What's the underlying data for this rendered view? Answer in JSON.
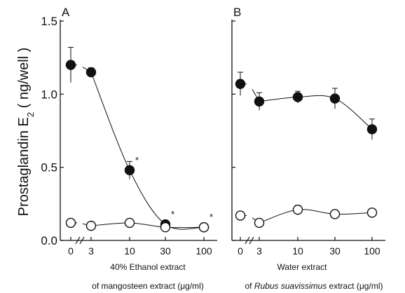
{
  "figure": {
    "ylabel": "Prostaglandin E",
    "ylabel_sub": "2",
    "ylabel_unit": " ( ng/well )"
  },
  "chart_data": [
    {
      "type": "scatter",
      "panel": "A",
      "xlabel_line1": "40% Ethanol extract",
      "xlabel_line2": "of mangosteen extract (μg/ml)",
      "ylabel": "Prostaglandin E2 ( ng/well )",
      "ylim": [
        0,
        1.5
      ],
      "yticks": [
        "0.0",
        "0.5",
        "1.0",
        "1.5"
      ],
      "x_ticks": [
        "0",
        "3",
        "10",
        "30",
        "100"
      ],
      "x_scale": "log (0 shown before axis break)",
      "axis_break": true,
      "series": [
        {
          "marker": "filled-circle",
          "x": [
            0,
            3,
            10,
            30,
            100
          ],
          "y": [
            1.2,
            1.15,
            0.48,
            0.11,
            0.09
          ],
          "err": [
            0.12,
            0.03,
            0.06,
            0.02,
            0.02
          ],
          "significance": [
            "",
            "",
            "*",
            "*",
            "*"
          ]
        },
        {
          "marker": "open-circle",
          "x": [
            0,
            3,
            10,
            30,
            100
          ],
          "y": [
            0.12,
            0.1,
            0.12,
            0.09,
            0.09
          ],
          "err": [
            0.02,
            0.02,
            0.02,
            0.02,
            0.02
          ]
        }
      ],
      "grid": false
    },
    {
      "type": "scatter",
      "panel": "B",
      "xlabel_line1": "Water extract",
      "xlabel_line2_prefix": "of ",
      "xlabel_line2_italic": "Rubus suavissimus",
      "xlabel_line2_suffix": " extract (μg/ml)",
      "ylim": [
        0,
        1.5
      ],
      "x_ticks": [
        "0",
        "3",
        "10",
        "30",
        "100"
      ],
      "x_scale": "log (0 shown before axis break)",
      "axis_break": true,
      "series": [
        {
          "marker": "filled-circle",
          "x": [
            0,
            3,
            10,
            30,
            100
          ],
          "y": [
            1.07,
            0.95,
            0.98,
            0.97,
            0.76
          ],
          "err": [
            0.08,
            0.06,
            0.04,
            0.07,
            0.07
          ]
        },
        {
          "marker": "open-circle",
          "x": [
            0,
            3,
            10,
            30,
            100
          ],
          "y": [
            0.17,
            0.12,
            0.21,
            0.18,
            0.19
          ],
          "err": [
            0.02,
            0.02,
            0.03,
            0.02,
            0.02
          ]
        }
      ],
      "grid": false
    }
  ]
}
